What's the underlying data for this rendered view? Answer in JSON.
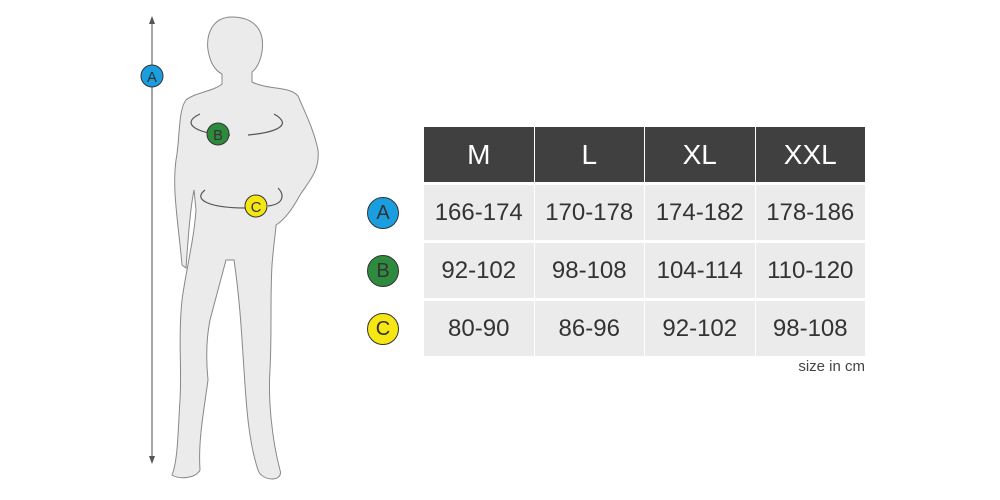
{
  "figure": {
    "markers": [
      {
        "label": "A",
        "color": "#1a9ee0"
      },
      {
        "label": "B",
        "color": "#2e8b3e"
      },
      {
        "label": "C",
        "color": "#f5e614"
      }
    ]
  },
  "table": {
    "headers": [
      "M",
      "L",
      "XL",
      "XXL"
    ],
    "rows": [
      {
        "marker": "A",
        "color": "#1a9ee0",
        "values": [
          "166-174",
          "170-178",
          "174-182",
          "178-186"
        ]
      },
      {
        "marker": "B",
        "color": "#2e8b3e",
        "values": [
          "92-102",
          "98-108",
          "104-114",
          "110-120"
        ]
      },
      {
        "marker": "C",
        "color": "#f5e614",
        "values": [
          "80-90",
          "86-96",
          "92-102",
          "98-108"
        ]
      }
    ],
    "note": "size in cm"
  }
}
